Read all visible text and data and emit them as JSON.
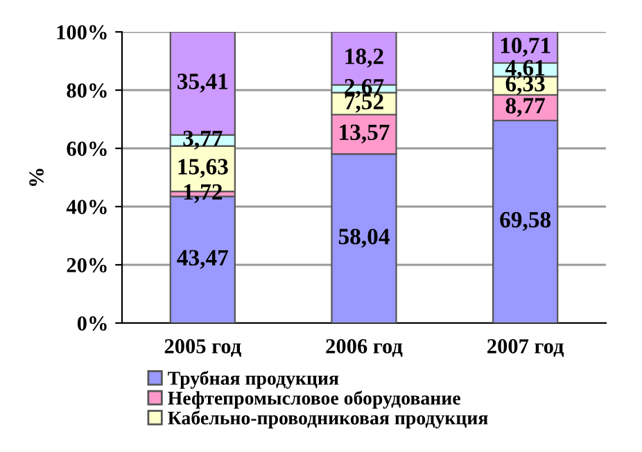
{
  "chart_data": {
    "type": "bar",
    "stacked": true,
    "ylabel": "%",
    "categories": [
      "2005 год",
      "2006 год",
      "2007 год"
    ],
    "series": [
      {
        "name": "Трубная продукция",
        "color": "#9999ff",
        "values": [
          43.47,
          58.04,
          69.58
        ],
        "value_labels": [
          "43,47",
          "58,04",
          "69,58"
        ]
      },
      {
        "name": "Нефтепромысловое оборудование",
        "color": "#ff99cc",
        "values": [
          1.72,
          13.57,
          8.77
        ],
        "value_labels": [
          "1,72",
          "13,57",
          "8,77"
        ]
      },
      {
        "name": "Кабельно-проводниковая продукция",
        "color": "#ffffcc",
        "values": [
          15.63,
          7.52,
          6.33
        ],
        "value_labels": [
          "15,63",
          "7,52",
          "6,33"
        ]
      },
      {
        "color": "#ccffff",
        "values": [
          3.77,
          2.67,
          4.61
        ],
        "value_labels": [
          "3,77",
          "2,67",
          "4,61"
        ]
      },
      {
        "color": "#cc99ff",
        "values": [
          35.41,
          18.2,
          10.71
        ],
        "value_labels": [
          "35,41",
          "18,2",
          "10,71"
        ]
      }
    ],
    "ylim": [
      0,
      100
    ],
    "yticks": [
      {
        "value": 0,
        "label": "0%"
      },
      {
        "value": 20,
        "label": "20%"
      },
      {
        "value": 40,
        "label": "40%"
      },
      {
        "value": 60,
        "label": "60%"
      },
      {
        "value": 80,
        "label": "80%"
      },
      {
        "value": 100,
        "label": "100%"
      }
    ],
    "grid": "y",
    "legend": "bottom"
  }
}
